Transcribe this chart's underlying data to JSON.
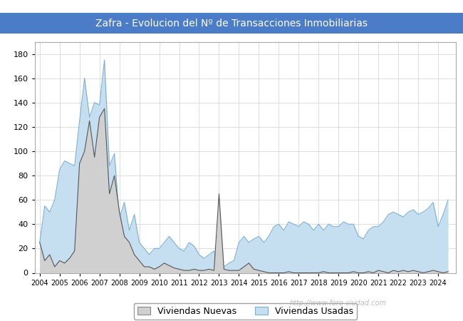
{
  "title": "Zafra - Evolucion del Nº de Transacciones Inmobiliarias",
  "title_bg_color": "#4a7cc7",
  "title_text_color": "#ffffff",
  "ylim": [
    0,
    190
  ],
  "yticks": [
    0,
    20,
    40,
    60,
    80,
    100,
    120,
    140,
    160,
    180
  ],
  "legend_labels": [
    "Viviendas Nuevas",
    "Viviendas Usadas"
  ],
  "nuevas_fill_color": "#d0d0d0",
  "usadas_fill_color": "#c5dff0",
  "line_nuevas_color": "#555555",
  "line_usadas_color": "#7ab0d4",
  "watermark": "http://www.foro-ciudad.com",
  "watermark_color": "#bbbbbb",
  "nuevas_quarterly": [
    25,
    10,
    15,
    5,
    10,
    8,
    12,
    18,
    90,
    100,
    125,
    95,
    128,
    135,
    65,
    80,
    50,
    30,
    25,
    15,
    10,
    5,
    5,
    3,
    5,
    8,
    6,
    4,
    3,
    2,
    2,
    3,
    2,
    2,
    3,
    2,
    65,
    3,
    2,
    2,
    2,
    5,
    8,
    3,
    2,
    1,
    0,
    0,
    0,
    0,
    1,
    0,
    0,
    0,
    0,
    0,
    0,
    1,
    0,
    0,
    0,
    0,
    0,
    1,
    0,
    0,
    1,
    0,
    2,
    1,
    0,
    2,
    1,
    2,
    1,
    2,
    1,
    0,
    1,
    2,
    1,
    0,
    1
  ],
  "usadas_quarterly": [
    25,
    55,
    50,
    60,
    85,
    92,
    90,
    88,
    125,
    160,
    128,
    140,
    138,
    175,
    88,
    98,
    45,
    58,
    35,
    48,
    25,
    20,
    15,
    20,
    20,
    25,
    30,
    25,
    20,
    18,
    25,
    22,
    15,
    12,
    15,
    18,
    3,
    5,
    8,
    10,
    25,
    30,
    25,
    28,
    30,
    25,
    30,
    38,
    40,
    35,
    42,
    40,
    38,
    42,
    40,
    35,
    40,
    35,
    40,
    38,
    38,
    42,
    40,
    40,
    30,
    28,
    35,
    38,
    38,
    42,
    48,
    50,
    48,
    46,
    50,
    52,
    48,
    50,
    53,
    58,
    38,
    48,
    60
  ]
}
